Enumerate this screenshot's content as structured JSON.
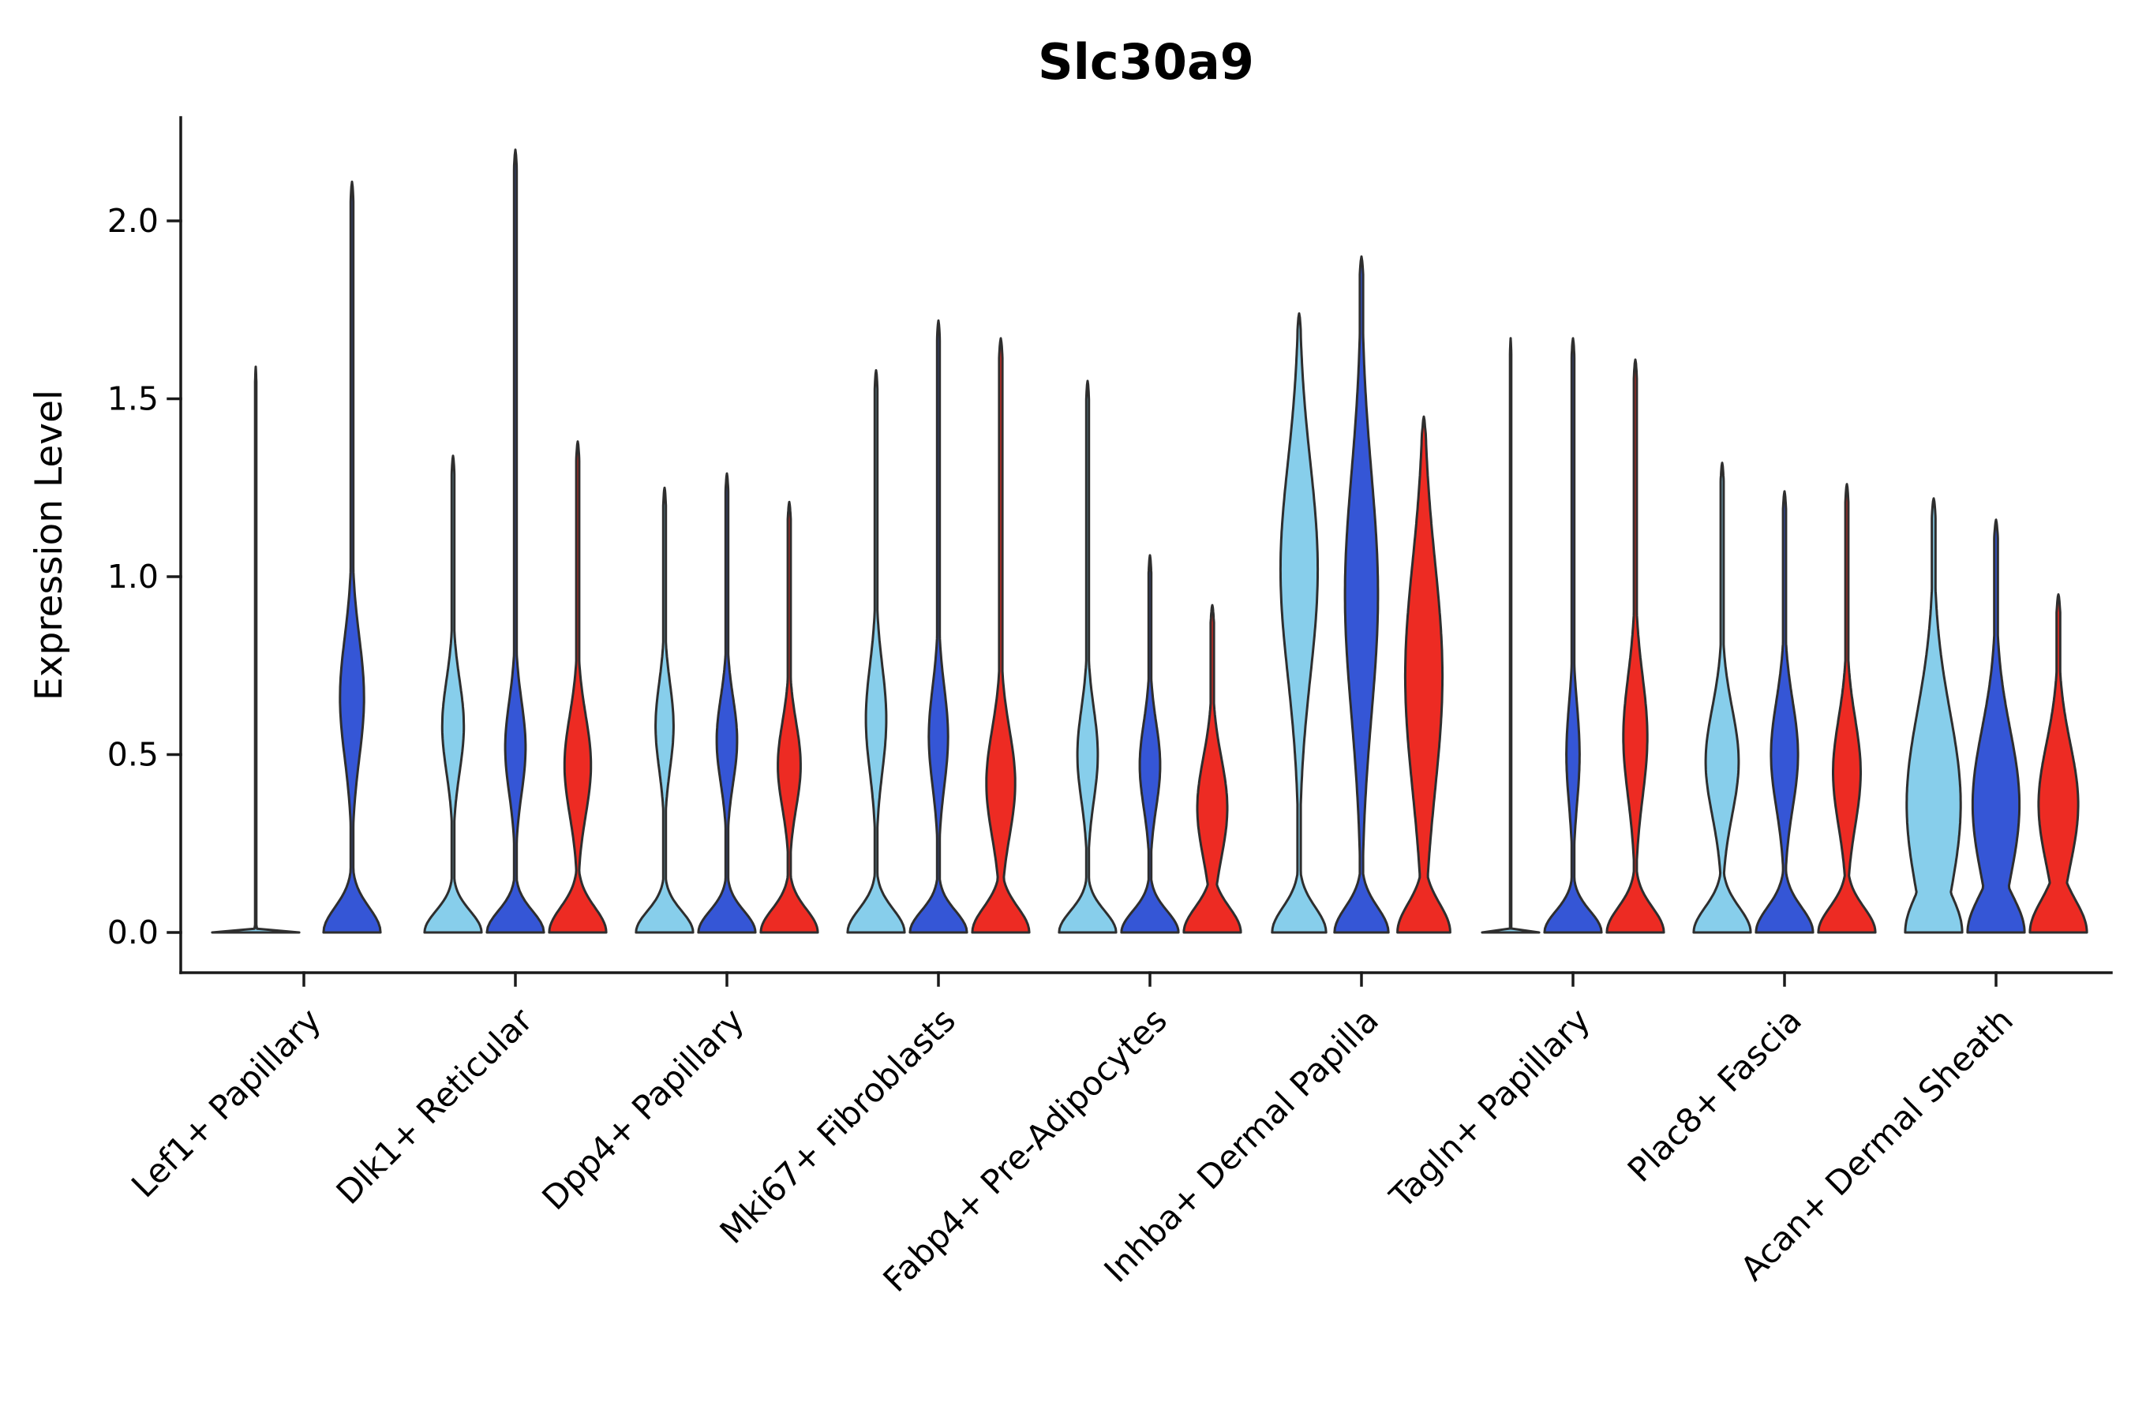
{
  "chart_data": {
    "type": "violin",
    "title": "Slc30a9",
    "ylabel": "Expression Level",
    "xlabel": "",
    "ylim": [
      -0.11,
      2.29
    ],
    "yticks": [
      0.0,
      0.5,
      1.0,
      1.5,
      2.0
    ],
    "grid": false,
    "legend": "none",
    "categories": [
      "Lef1+ Papillary",
      "Dlk1+ Reticular",
      "Dpp4+ Papillary",
      "Mki67+ Fibroblasts",
      "Fabp4+ Pre-Adipocytes",
      "Inhba+ Dermal Papilla",
      "Tagln+ Papillary",
      "Plac8+ Fascia",
      "Acan+ Dermal Sheath"
    ],
    "conditions": [
      {
        "id": "condition-1",
        "color": "#87CEEB"
      },
      {
        "id": "condition-2",
        "color": "#3556D6"
      },
      {
        "id": "condition-3",
        "color": "#ED2B23"
      }
    ],
    "violins": [
      {
        "category": 0,
        "condition": 0,
        "max": 1.59,
        "shape": {
          "base_w": 1.45,
          "base_s": 0.004,
          "stem_w": 0.022
        }
      },
      {
        "category": 0,
        "condition": 1,
        "max": 2.11,
        "shape": {
          "base_w": 0.95,
          "base_s": 0.07,
          "stem_w": 0.045,
          "mid_c": 0.66,
          "mid_w": 0.4,
          "mid_s": 0.17
        }
      },
      {
        "category": 1,
        "condition": 0,
        "max": 1.34,
        "shape": {
          "base_w": 0.95,
          "base_s": 0.06,
          "stem_w": 0.045,
          "mid_c": 0.58,
          "mid_w": 0.36,
          "mid_s": 0.13
        }
      },
      {
        "category": 1,
        "condition": 1,
        "max": 2.2,
        "shape": {
          "base_w": 0.95,
          "base_s": 0.06,
          "stem_w": 0.045,
          "mid_c": 0.52,
          "mid_w": 0.34,
          "mid_s": 0.13
        }
      },
      {
        "category": 1,
        "condition": 2,
        "max": 1.38,
        "shape": {
          "base_w": 0.95,
          "base_s": 0.07,
          "stem_w": 0.05,
          "mid_c": 0.47,
          "mid_w": 0.44,
          "mid_s": 0.14
        }
      },
      {
        "category": 2,
        "condition": 0,
        "max": 1.25,
        "shape": {
          "base_w": 0.95,
          "base_s": 0.06,
          "stem_w": 0.045,
          "mid_c": 0.58,
          "mid_w": 0.3,
          "mid_s": 0.12
        }
      },
      {
        "category": 2,
        "condition": 1,
        "max": 1.29,
        "shape": {
          "base_w": 0.95,
          "base_s": 0.06,
          "stem_w": 0.045,
          "mid_c": 0.54,
          "mid_w": 0.34,
          "mid_s": 0.12
        }
      },
      {
        "category": 2,
        "condition": 2,
        "max": 1.21,
        "shape": {
          "base_w": 0.95,
          "base_s": 0.065,
          "stem_w": 0.05,
          "mid_c": 0.47,
          "mid_w": 0.38,
          "mid_s": 0.12
        }
      },
      {
        "category": 3,
        "condition": 0,
        "max": 1.58,
        "shape": {
          "base_w": 0.95,
          "base_s": 0.065,
          "stem_w": 0.045,
          "mid_c": 0.6,
          "mid_w": 0.34,
          "mid_s": 0.15
        }
      },
      {
        "category": 3,
        "condition": 1,
        "max": 1.72,
        "shape": {
          "base_w": 0.95,
          "base_s": 0.06,
          "stem_w": 0.045,
          "mid_c": 0.55,
          "mid_w": 0.32,
          "mid_s": 0.14
        }
      },
      {
        "category": 3,
        "condition": 2,
        "max": 1.67,
        "shape": {
          "base_w": 0.95,
          "base_s": 0.07,
          "stem_w": 0.055,
          "mid_c": 0.42,
          "mid_w": 0.48,
          "mid_s": 0.15
        }
      },
      {
        "category": 4,
        "condition": 0,
        "max": 1.55,
        "shape": {
          "base_w": 0.95,
          "base_s": 0.06,
          "stem_w": 0.045,
          "mid_c": 0.5,
          "mid_w": 0.34,
          "mid_s": 0.13
        }
      },
      {
        "category": 4,
        "condition": 1,
        "max": 1.06,
        "shape": {
          "base_w": 0.95,
          "base_s": 0.06,
          "stem_w": 0.045,
          "mid_c": 0.47,
          "mid_w": 0.34,
          "mid_s": 0.12
        }
      },
      {
        "category": 4,
        "condition": 2,
        "max": 0.92,
        "shape": {
          "base_w": 0.95,
          "base_s": 0.07,
          "stem_w": 0.055,
          "mid_c": 0.35,
          "mid_w": 0.5,
          "mid_s": 0.14
        }
      },
      {
        "category": 5,
        "condition": 0,
        "max": 1.74,
        "shape": {
          "base_w": 0.9,
          "base_s": 0.07,
          "stem_w": 0.055,
          "mid_c": 1.02,
          "mid_w": 0.62,
          "mid_s": 0.3
        }
      },
      {
        "category": 5,
        "condition": 1,
        "max": 1.9,
        "shape": {
          "base_w": 0.9,
          "base_s": 0.07,
          "stem_w": 0.055,
          "mid_c": 0.95,
          "mid_w": 0.55,
          "mid_s": 0.34
        }
      },
      {
        "category": 5,
        "condition": 2,
        "max": 1.45,
        "shape": {
          "base_w": 0.88,
          "base_s": 0.08,
          "stem_w": 0.055,
          "mid_c": 0.72,
          "mid_w": 0.62,
          "mid_s": 0.32
        }
      },
      {
        "category": 6,
        "condition": 0,
        "max": 1.67,
        "shape": {
          "base_w": 0.95,
          "base_s": 0.004,
          "stem_w": 0.022
        }
      },
      {
        "category": 6,
        "condition": 1,
        "max": 1.67,
        "shape": {
          "base_w": 0.95,
          "base_s": 0.06,
          "stem_w": 0.045,
          "mid_c": 0.5,
          "mid_w": 0.22,
          "mid_s": 0.14
        }
      },
      {
        "category": 6,
        "condition": 2,
        "max": 1.61,
        "shape": {
          "base_w": 0.95,
          "base_s": 0.07,
          "stem_w": 0.05,
          "mid_c": 0.55,
          "mid_w": 0.4,
          "mid_s": 0.17
        }
      },
      {
        "category": 7,
        "condition": 0,
        "max": 1.32,
        "shape": {
          "base_w": 0.95,
          "base_s": 0.07,
          "stem_w": 0.05,
          "mid_c": 0.48,
          "mid_w": 0.55,
          "mid_s": 0.15
        }
      },
      {
        "category": 7,
        "condition": 1,
        "max": 1.24,
        "shape": {
          "base_w": 0.95,
          "base_s": 0.07,
          "stem_w": 0.05,
          "mid_c": 0.5,
          "mid_w": 0.45,
          "mid_s": 0.15
        }
      },
      {
        "category": 7,
        "condition": 2,
        "max": 1.26,
        "shape": {
          "base_w": 0.95,
          "base_s": 0.07,
          "stem_w": 0.05,
          "mid_c": 0.45,
          "mid_w": 0.46,
          "mid_s": 0.15
        }
      },
      {
        "category": 8,
        "condition": 0,
        "max": 1.22,
        "shape": {
          "base_w": 0.95,
          "base_s": 0.11,
          "stem_w": 0.06,
          "mid_c": 0.36,
          "mid_w": 0.9,
          "mid_s": 0.26
        }
      },
      {
        "category": 8,
        "condition": 1,
        "max": 1.16,
        "shape": {
          "base_w": 0.95,
          "base_s": 0.1,
          "stem_w": 0.06,
          "mid_c": 0.36,
          "mid_w": 0.78,
          "mid_s": 0.21
        }
      },
      {
        "category": 8,
        "condition": 2,
        "max": 0.95,
        "shape": {
          "base_w": 0.95,
          "base_s": 0.09,
          "stem_w": 0.06,
          "mid_c": 0.36,
          "mid_w": 0.66,
          "mid_s": 0.17
        }
      }
    ]
  }
}
